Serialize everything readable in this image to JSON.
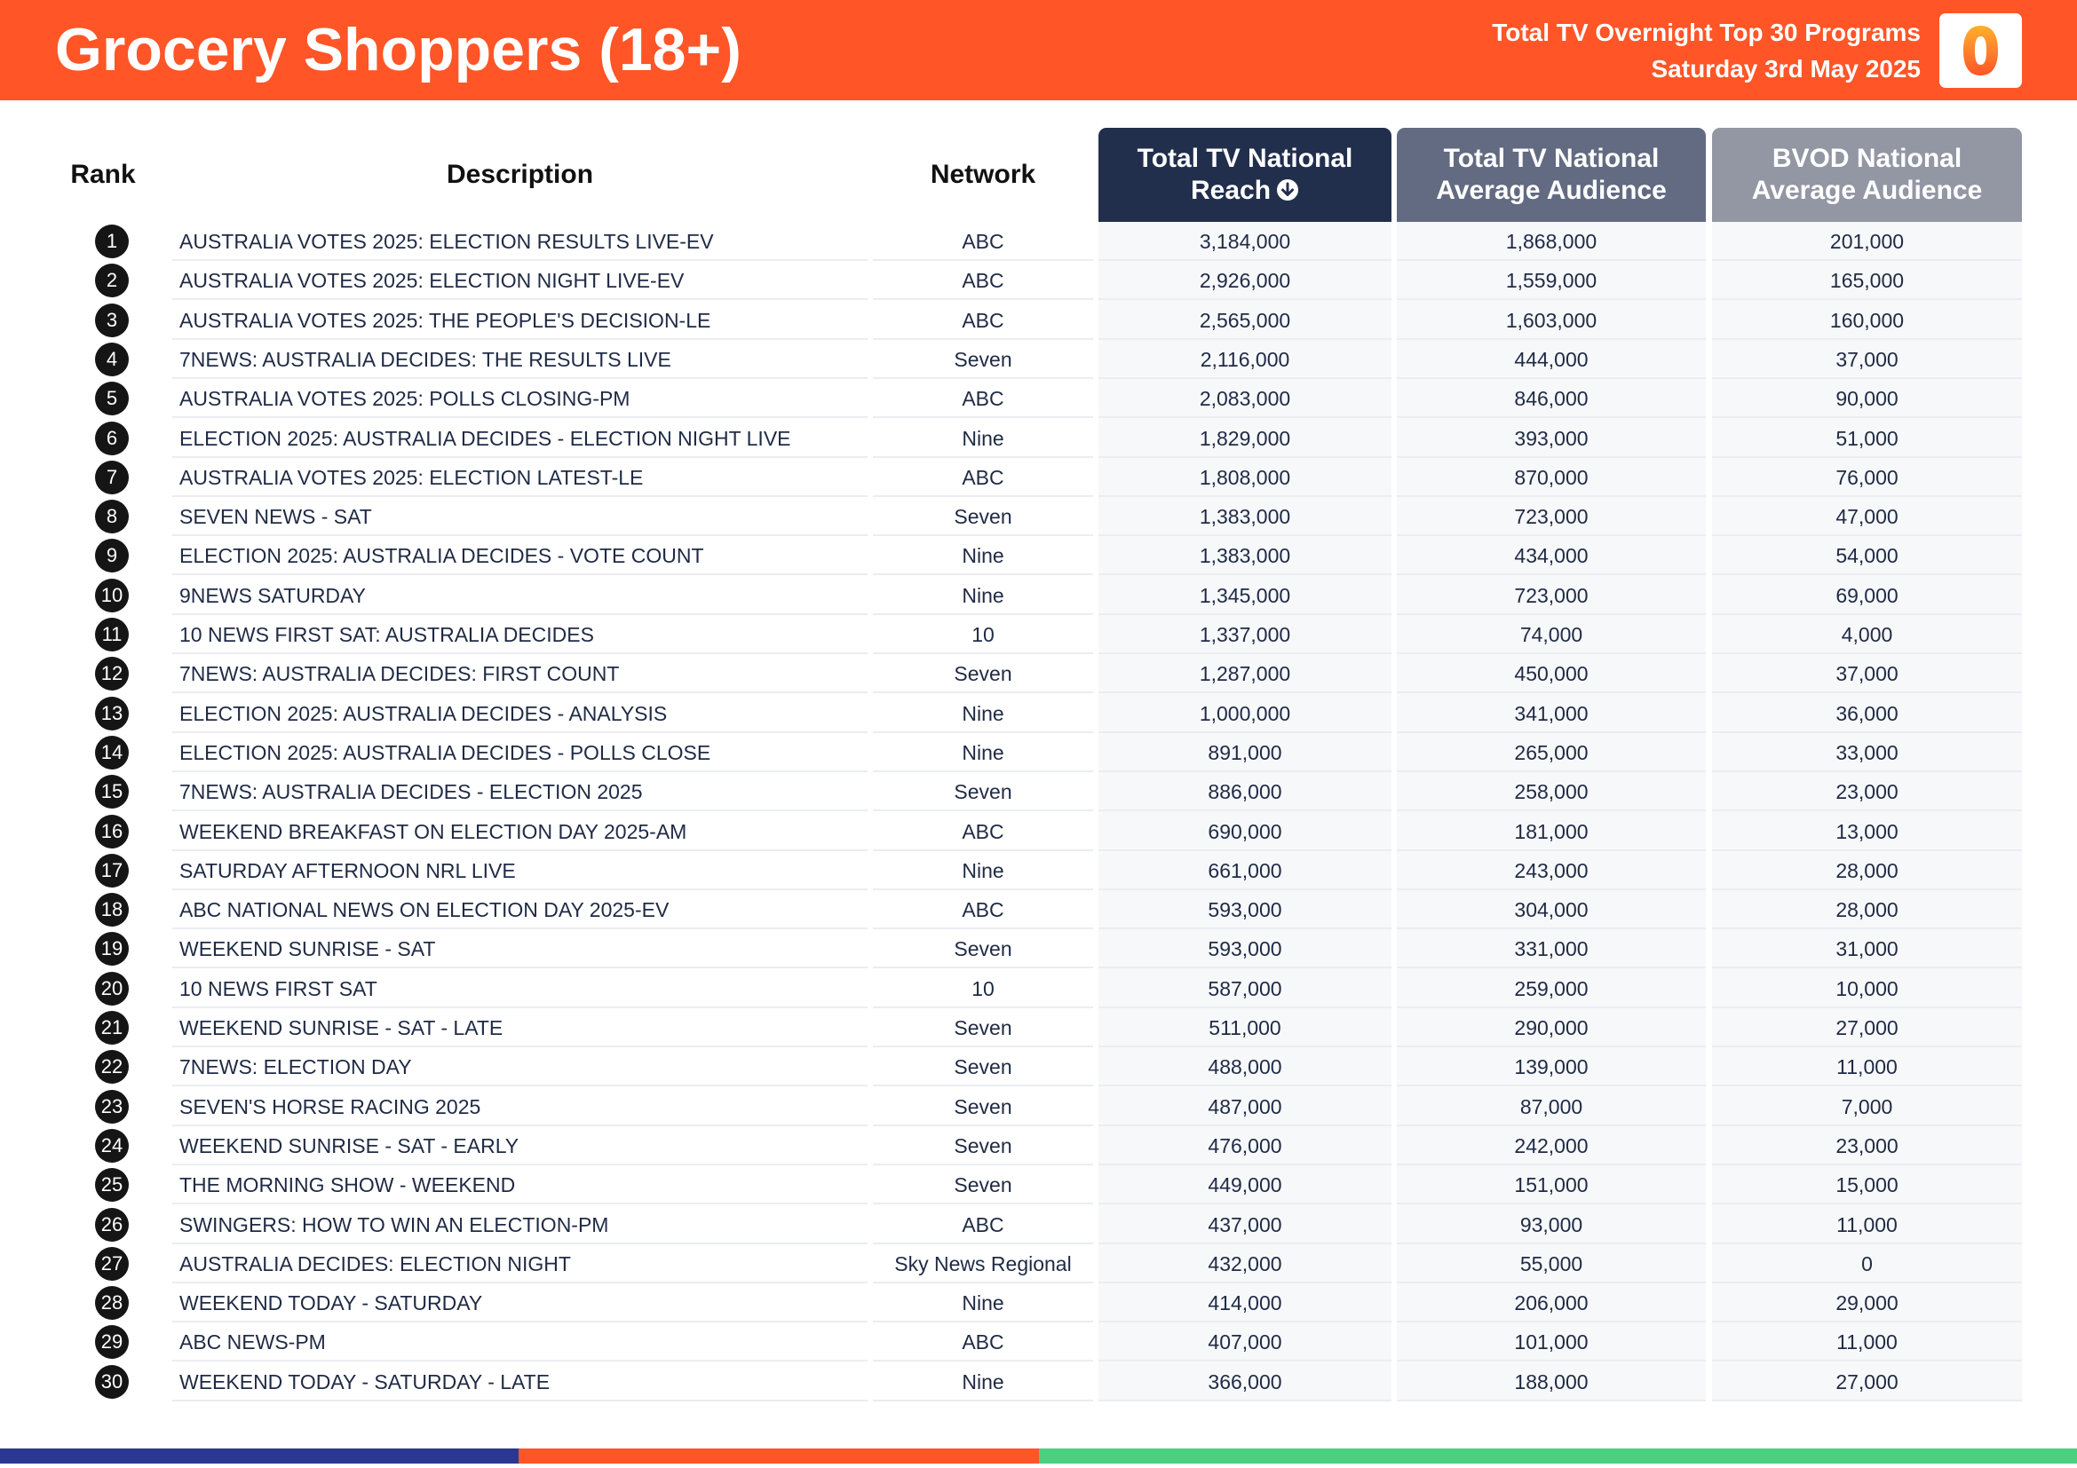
{
  "header": {
    "title": "Grocery Shoppers (18+)",
    "subtitle_line1": "Total TV Overnight Top 30 Programs",
    "subtitle_line2": "Saturday 3rd May 2025",
    "brand_color": "#ff5527",
    "logo_icon": "oztam-logo-icon"
  },
  "columns": {
    "rank": "Rank",
    "description": "Description",
    "network": "Network",
    "reach_line1": "Total TV National",
    "reach_line2": "Reach",
    "avg_line1": "Total TV National",
    "avg_line2": "Average Audience",
    "bvod_line1": "BVOD National",
    "bvod_line2": "Average Audience",
    "sort_icon": "sort-descending-icon",
    "colors": {
      "reach": "#222f4c",
      "avg": "#626b81",
      "bvod": "#9397a4"
    }
  },
  "rows": [
    {
      "rank": "1",
      "description": "AUSTRALIA VOTES 2025: ELECTION RESULTS LIVE-EV",
      "network": "ABC",
      "reach": "3,184,000",
      "avg": "1,868,000",
      "bvod": "201,000"
    },
    {
      "rank": "2",
      "description": "AUSTRALIA VOTES 2025: ELECTION NIGHT LIVE-EV",
      "network": "ABC",
      "reach": "2,926,000",
      "avg": "1,559,000",
      "bvod": "165,000"
    },
    {
      "rank": "3",
      "description": "AUSTRALIA VOTES 2025: THE PEOPLE'S DECISION-LE",
      "network": "ABC",
      "reach": "2,565,000",
      "avg": "1,603,000",
      "bvod": "160,000"
    },
    {
      "rank": "4",
      "description": "7NEWS: AUSTRALIA DECIDES: THE RESULTS LIVE",
      "network": "Seven",
      "reach": "2,116,000",
      "avg": "444,000",
      "bvod": "37,000"
    },
    {
      "rank": "5",
      "description": "AUSTRALIA VOTES 2025: POLLS CLOSING-PM",
      "network": "ABC",
      "reach": "2,083,000",
      "avg": "846,000",
      "bvod": "90,000"
    },
    {
      "rank": "6",
      "description": "ELECTION 2025: AUSTRALIA DECIDES - ELECTION NIGHT LIVE",
      "network": "Nine",
      "reach": "1,829,000",
      "avg": "393,000",
      "bvod": "51,000"
    },
    {
      "rank": "7",
      "description": "AUSTRALIA VOTES 2025: ELECTION LATEST-LE",
      "network": "ABC",
      "reach": "1,808,000",
      "avg": "870,000",
      "bvod": "76,000"
    },
    {
      "rank": "8",
      "description": "SEVEN NEWS - SAT",
      "network": "Seven",
      "reach": "1,383,000",
      "avg": "723,000",
      "bvod": "47,000"
    },
    {
      "rank": "9",
      "description": "ELECTION 2025: AUSTRALIA DECIDES - VOTE COUNT",
      "network": "Nine",
      "reach": "1,383,000",
      "avg": "434,000",
      "bvod": "54,000"
    },
    {
      "rank": "10",
      "description": "9NEWS SATURDAY",
      "network": "Nine",
      "reach": "1,345,000",
      "avg": "723,000",
      "bvod": "69,000"
    },
    {
      "rank": "11",
      "description": "10 NEWS FIRST SAT: AUSTRALIA DECIDES",
      "network": "10",
      "reach": "1,337,000",
      "avg": "74,000",
      "bvod": "4,000"
    },
    {
      "rank": "12",
      "description": "7NEWS: AUSTRALIA DECIDES: FIRST COUNT",
      "network": "Seven",
      "reach": "1,287,000",
      "avg": "450,000",
      "bvod": "37,000"
    },
    {
      "rank": "13",
      "description": "ELECTION 2025: AUSTRALIA DECIDES - ANALYSIS",
      "network": "Nine",
      "reach": "1,000,000",
      "avg": "341,000",
      "bvod": "36,000"
    },
    {
      "rank": "14",
      "description": "ELECTION 2025: AUSTRALIA DECIDES - POLLS CLOSE",
      "network": "Nine",
      "reach": "891,000",
      "avg": "265,000",
      "bvod": "33,000"
    },
    {
      "rank": "15",
      "description": "7NEWS: AUSTRALIA DECIDES - ELECTION 2025",
      "network": "Seven",
      "reach": "886,000",
      "avg": "258,000",
      "bvod": "23,000"
    },
    {
      "rank": "16",
      "description": "WEEKEND BREAKFAST ON ELECTION DAY 2025-AM",
      "network": "ABC",
      "reach": "690,000",
      "avg": "181,000",
      "bvod": "13,000"
    },
    {
      "rank": "17",
      "description": "SATURDAY AFTERNOON NRL LIVE",
      "network": "Nine",
      "reach": "661,000",
      "avg": "243,000",
      "bvod": "28,000"
    },
    {
      "rank": "18",
      "description": "ABC NATIONAL NEWS ON ELECTION DAY 2025-EV",
      "network": "ABC",
      "reach": "593,000",
      "avg": "304,000",
      "bvod": "28,000"
    },
    {
      "rank": "19",
      "description": "WEEKEND SUNRISE - SAT",
      "network": "Seven",
      "reach": "593,000",
      "avg": "331,000",
      "bvod": "31,000"
    },
    {
      "rank": "20",
      "description": "10 NEWS FIRST SAT",
      "network": "10",
      "reach": "587,000",
      "avg": "259,000",
      "bvod": "10,000"
    },
    {
      "rank": "21",
      "description": "WEEKEND SUNRISE - SAT - LATE",
      "network": "Seven",
      "reach": "511,000",
      "avg": "290,000",
      "bvod": "27,000"
    },
    {
      "rank": "22",
      "description": "7NEWS: ELECTION DAY",
      "network": "Seven",
      "reach": "488,000",
      "avg": "139,000",
      "bvod": "11,000"
    },
    {
      "rank": "23",
      "description": "SEVEN'S HORSE RACING 2025",
      "network": "Seven",
      "reach": "487,000",
      "avg": "87,000",
      "bvod": "7,000"
    },
    {
      "rank": "24",
      "description": "WEEKEND SUNRISE - SAT - EARLY",
      "network": "Seven",
      "reach": "476,000",
      "avg": "242,000",
      "bvod": "23,000"
    },
    {
      "rank": "25",
      "description": "THE MORNING SHOW - WEEKEND",
      "network": "Seven",
      "reach": "449,000",
      "avg": "151,000",
      "bvod": "15,000"
    },
    {
      "rank": "26",
      "description": "SWINGERS: HOW TO WIN AN ELECTION-PM",
      "network": "ABC",
      "reach": "437,000",
      "avg": "93,000",
      "bvod": "11,000"
    },
    {
      "rank": "27",
      "description": "AUSTRALIA DECIDES: ELECTION NIGHT",
      "network": "Sky News Regional",
      "reach": "432,000",
      "avg": "55,000",
      "bvod": "0"
    },
    {
      "rank": "28",
      "description": "WEEKEND TODAY - SATURDAY",
      "network": "Nine",
      "reach": "414,000",
      "avg": "206,000",
      "bvod": "29,000"
    },
    {
      "rank": "29",
      "description": "ABC NEWS-PM",
      "network": "ABC",
      "reach": "407,000",
      "avg": "101,000",
      "bvod": "11,000"
    },
    {
      "rank": "30",
      "description": "WEEKEND TODAY - SATURDAY - LATE",
      "network": "Nine",
      "reach": "366,000",
      "avg": "188,000",
      "bvod": "27,000"
    }
  ],
  "footer": {
    "stripe_colors": [
      "#2b3891",
      "#ff5527",
      "#4ccf7f"
    ]
  }
}
